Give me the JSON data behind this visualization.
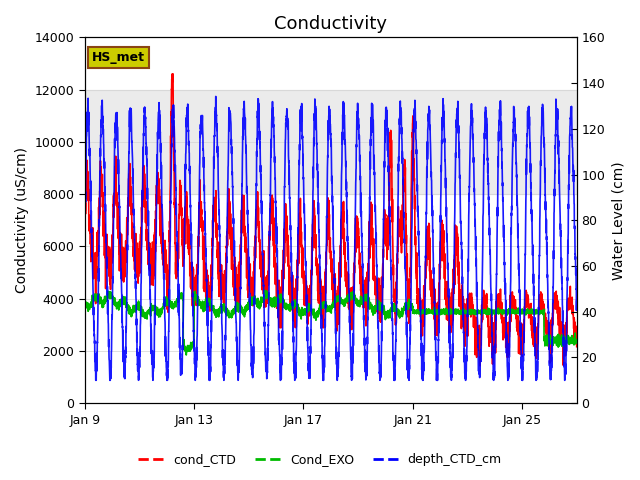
{
  "title": "Conductivity",
  "ylabel_left": "Conductivity (uS/cm)",
  "ylabel_right": "Water Level (cm)",
  "ylim_left": [
    0,
    14000
  ],
  "ylim_right": [
    0,
    160
  ],
  "x_tick_labels": [
    "Jan 9",
    "Jan 13",
    "Jan 17",
    "Jan 21",
    "Jan 25"
  ],
  "x_tick_positions": [
    0,
    4,
    8,
    12,
    16
  ],
  "xlim_days": [
    0,
    18
  ],
  "shade_ymin": 8000,
  "shade_ymax": 12000,
  "shade_color": "#d8d8d8",
  "shade_alpha": 0.5,
  "legend_station": "HS_met",
  "legend_station_facecolor": "#cccc00",
  "legend_station_edgecolor": "#8B4513",
  "background_color": "#ffffff",
  "line_colors": {
    "cond_CTD": "#ff0000",
    "Cond_EXO": "#00bb00",
    "depth_CTD_cm": "#0000ff"
  },
  "line_widths": {
    "cond_CTD": 1.2,
    "Cond_EXO": 1.2,
    "depth_CTD_cm": 1.2
  },
  "title_fontsize": 13,
  "axis_fontsize": 10,
  "tick_fontsize": 9
}
